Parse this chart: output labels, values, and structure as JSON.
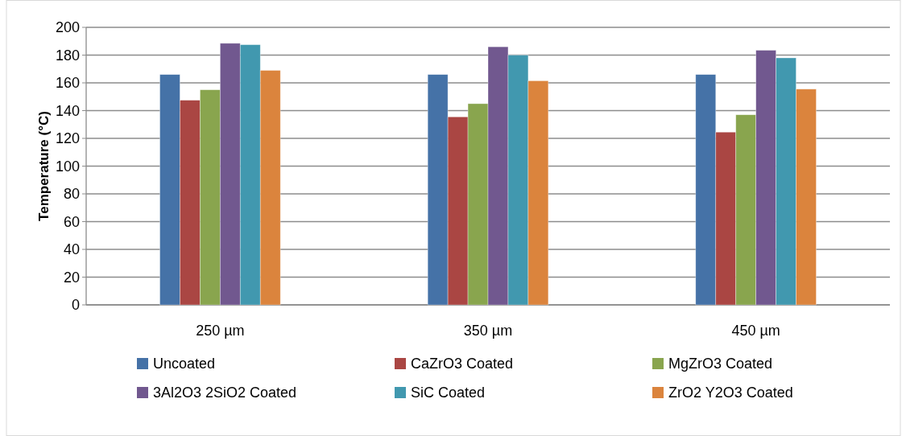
{
  "chart_data": {
    "type": "bar",
    "ylabel": "Temperature (°C)",
    "categories": [
      "250 µm",
      "350 µm",
      "450 µm"
    ],
    "series": [
      {
        "name": "Uncoated",
        "color": "#4572a7",
        "values": [
          166,
          166,
          166
        ]
      },
      {
        "name": "CaZrO3 Coated",
        "color": "#aa4643",
        "values": [
          147.5,
          135.5,
          124.5
        ]
      },
      {
        "name": "MgZrO3 Coated",
        "color": "#89a54e",
        "values": [
          155,
          145,
          137
        ]
      },
      {
        "name": "3Al2O3 2SiO2 Coated",
        "color": "#71588f",
        "values": [
          188.5,
          186,
          183.5
        ]
      },
      {
        "name": "SiC Coated",
        "color": "#4198af",
        "values": [
          187.5,
          180,
          178
        ]
      },
      {
        "name": "ZrO2 Y2O3 Coated",
        "color": "#db843d",
        "values": [
          169,
          161.5,
          155.5
        ]
      }
    ],
    "ylim": [
      0,
      200
    ],
    "yticks": [
      0,
      20,
      40,
      60,
      80,
      100,
      120,
      140,
      160,
      180,
      200
    ],
    "grid": "y",
    "legend": "bottom"
  }
}
